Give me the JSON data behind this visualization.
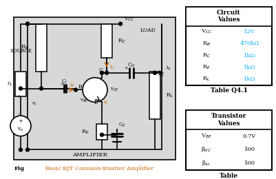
{
  "title_fig": "Fig",
  "title_caption": "Basic BJT Common-Emitter Amplifier",
  "table1_title": "Circuit\nValues",
  "table1_caption": "Table Q4.1",
  "table1_row_labels": [
    "V$_{CC}$",
    "R$_B$",
    "R$_C$",
    "R$_E$",
    "R$_L$"
  ],
  "table1_row_values": [
    "12V",
    "470kΩ",
    "1kΩ",
    "1kΩ",
    "1kΩ"
  ],
  "table2_title": "Transistor\nValues",
  "table2_caption": "Table",
  "table2_row_labels": [
    "V$_{BE}$",
    "β$_{DC}$",
    "β$_{ac}$"
  ],
  "table2_row_values": [
    "0.7V",
    "100",
    "100"
  ],
  "bg_color": "#e8e8e8",
  "value_color": "#00aaff",
  "orange_color": "#cc6600",
  "circuit_bg": "#d8d8d8"
}
